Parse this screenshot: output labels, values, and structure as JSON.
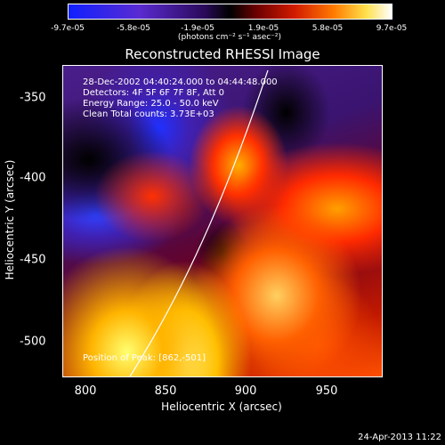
{
  "colorbar": {
    "ticks": [
      "-9.7e-05",
      "-5.8e-05",
      "-1.9e-05",
      "1.9e-05",
      "5.8e-05",
      "9.7e-05"
    ],
    "units": "(photons cm⁻² s⁻¹ asec⁻²)"
  },
  "title": "Reconstructed RHESSI Image",
  "annotations": {
    "time_range": "28-Dec-2002 04:40:24.000 to 04:44:48.000",
    "detectors": "Detectors: 4F 5F 6F 7F 8F, Att 0",
    "energy": "Energy Range: 25.0 - 50.0 keV",
    "clean": "Clean     Total counts: 3.73E+03",
    "peak": "Position of Peak: [862,-501]"
  },
  "axes": {
    "xlabel": "Heliocentric X (arcsec)",
    "ylabel": "Heliocentric Y (arcsec)",
    "xticks": [
      "800",
      "850",
      "900",
      "950"
    ],
    "yticks": [
      "-350",
      "-400",
      "-450",
      "-500"
    ]
  },
  "timestamp": "24-Apr-2013 11:22",
  "colors": {
    "background": "#000000",
    "text": "#ffffff",
    "limb_line": "#ffffff"
  }
}
